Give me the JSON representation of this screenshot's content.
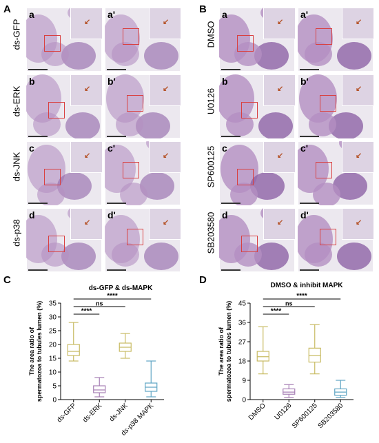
{
  "panels": {
    "A": {
      "letter": "A",
      "rows": [
        {
          "label": "ds-GFP",
          "left": "a",
          "right": "a'"
        },
        {
          "label": "ds-ERK",
          "left": "b",
          "right": "b'"
        },
        {
          "label": "ds-JNK",
          "left": "c",
          "right": "c'"
        },
        {
          "label": "ds-p38",
          "left": "d",
          "right": "d'"
        }
      ]
    },
    "B": {
      "letter": "B",
      "rows": [
        {
          "label": "DMSO",
          "left": "a",
          "right": "a'"
        },
        {
          "label": "U0126",
          "left": "b",
          "right": "b'"
        },
        {
          "label": "SP600125",
          "left": "c",
          "right": "c'"
        },
        {
          "label": "SB203580",
          "left": "d",
          "right": "d'"
        }
      ]
    },
    "C": {
      "letter": "C"
    },
    "D": {
      "letter": "D"
    }
  },
  "colors": {
    "tissue": "#b48fc2",
    "tissue_dark": "#8f63a6",
    "red_box": "#d94040",
    "arrow": "#b5542a"
  },
  "chart_data": [
    {
      "type": "box",
      "title": "ds-GFP & ds-MAPK",
      "ylabel": "The area ratio of spermatozoa to tubules lumen (%)",
      "ylim": [
        0,
        35
      ],
      "yticks": [
        0,
        5,
        10,
        15,
        20,
        25,
        30,
        35
      ],
      "categories": [
        "ds-GFP",
        "ds-ERK",
        "ds-JNK",
        "ds-p38 MAPK"
      ],
      "series": [
        {
          "min": 14,
          "q1": 16,
          "median": 17.5,
          "q3": 20,
          "max": 28,
          "color": "#c8bb63"
        },
        {
          "min": 1,
          "q1": 2.5,
          "median": 3.5,
          "q3": 5,
          "max": 8,
          "color": "#a77fb5"
        },
        {
          "min": 15,
          "q1": 17.5,
          "median": 19,
          "q3": 20.5,
          "max": 24,
          "color": "#c8bb63"
        },
        {
          "min": 1,
          "q1": 3,
          "median": 4.5,
          "q3": 6,
          "max": 14,
          "color": "#5fa5c4"
        }
      ],
      "comparisons": [
        {
          "label": "****",
          "from": 0,
          "to": 1
        },
        {
          "label": "ns",
          "from": 0,
          "to": 2
        },
        {
          "label": "****",
          "from": 0,
          "to": 3
        }
      ]
    },
    {
      "type": "box",
      "title": "DMSO & inhibit MAPK",
      "ylabel": "The area ratio of spermatozoa to tubules lumen (%)",
      "ylim": [
        0,
        45
      ],
      "yticks": [
        0,
        9,
        18,
        27,
        36,
        45
      ],
      "categories": [
        "DMSO",
        "U0126",
        "SP600125",
        "SB203580"
      ],
      "series": [
        {
          "min": 12,
          "q1": 18,
          "median": 20,
          "q3": 22.5,
          "max": 34,
          "color": "#c8bb63"
        },
        {
          "min": 1,
          "q1": 2.5,
          "median": 3.5,
          "q3": 5,
          "max": 7,
          "color": "#a77fb5"
        },
        {
          "min": 12,
          "q1": 17.5,
          "median": 20.5,
          "q3": 24,
          "max": 35,
          "color": "#c8bb63"
        },
        {
          "min": 1,
          "q1": 2,
          "median": 3.5,
          "q3": 5,
          "max": 9,
          "color": "#5fa5c4"
        }
      ],
      "comparisons": [
        {
          "label": "****",
          "from": 0,
          "to": 1
        },
        {
          "label": "ns",
          "from": 0,
          "to": 2
        },
        {
          "label": "****",
          "from": 0,
          "to": 3
        }
      ]
    }
  ]
}
